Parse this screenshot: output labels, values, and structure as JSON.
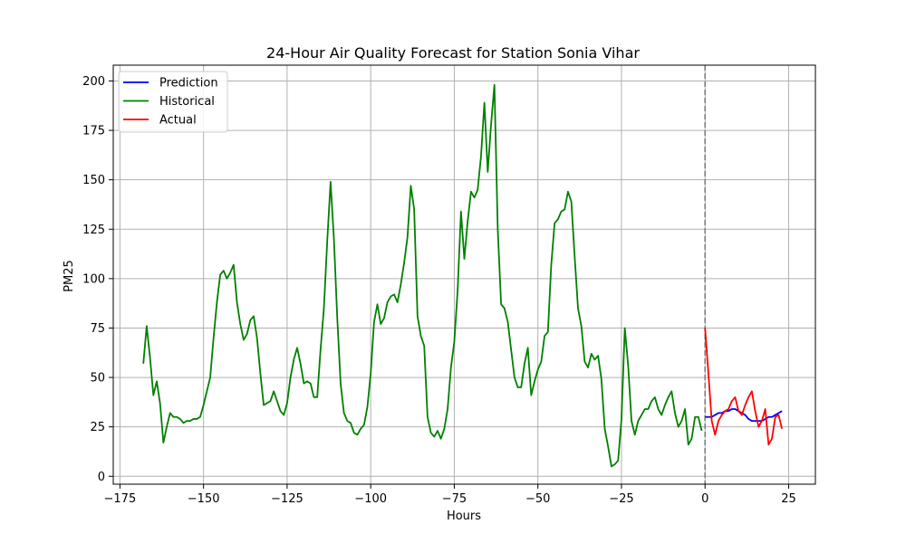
{
  "chart_data": {
    "type": "line",
    "title": "24-Hour Air Quality Forecast for Station Sonia Vihar",
    "xlabel": "Hours",
    "ylabel": "PM25",
    "xlim": [
      -177,
      33
    ],
    "ylim": [
      -4,
      208
    ],
    "xticks": [
      -175,
      -150,
      -125,
      -100,
      -75,
      -50,
      -25,
      0,
      25
    ],
    "yticks": [
      0,
      25,
      50,
      75,
      100,
      125,
      150,
      175,
      200
    ],
    "grid": true,
    "legend_position": "top-left",
    "vline": {
      "x": 0,
      "color": "#808080",
      "style": "dashed"
    },
    "series": [
      {
        "name": "Historical",
        "color": "#008000",
        "x": [
          -168,
          -167,
          -166,
          -165,
          -164,
          -163,
          -162,
          -161,
          -160,
          -159,
          -158,
          -157,
          -156,
          -155,
          -154,
          -153,
          -152,
          -151,
          -150,
          -149,
          -148,
          -147,
          -146,
          -145,
          -144,
          -143,
          -142,
          -141,
          -140,
          -139,
          -138,
          -137,
          -136,
          -135,
          -134,
          -133,
          -132,
          -131,
          -130,
          -129,
          -128,
          -127,
          -126,
          -125,
          -124,
          -123,
          -122,
          -121,
          -120,
          -119,
          -118,
          -117,
          -116,
          -115,
          -114,
          -113,
          -112,
          -111,
          -110,
          -109,
          -108,
          -107,
          -106,
          -105,
          -104,
          -103,
          -102,
          -101,
          -100,
          -99,
          -98,
          -97,
          -96,
          -95,
          -94,
          -93,
          -92,
          -91,
          -90,
          -89,
          -88,
          -87,
          -86,
          -85,
          -84,
          -83,
          -82,
          -81,
          -80,
          -79,
          -78,
          -77,
          -76,
          -75,
          -74,
          -73,
          -72,
          -71,
          -70,
          -69,
          -68,
          -67,
          -66,
          -65,
          -64,
          -63,
          -62,
          -61,
          -60,
          -59,
          -58,
          -57,
          -56,
          -55,
          -54,
          -53,
          -52,
          -51,
          -50,
          -49,
          -48,
          -47,
          -46,
          -45,
          -44,
          -43,
          -42,
          -41,
          -40,
          -39,
          -38,
          -37,
          -36,
          -35,
          -34,
          -33,
          -32,
          -31,
          -30,
          -29,
          -28,
          -27,
          -26,
          -25,
          -24,
          -23,
          -22,
          -21,
          -20,
          -19,
          -18,
          -17,
          -16,
          -15,
          -14,
          -13,
          -12,
          -11,
          -10,
          -9,
          -8,
          -7,
          -6,
          -5,
          -4,
          -3,
          -2,
          -1
        ],
        "values": [
          57,
          76,
          60,
          41,
          48,
          37,
          17,
          25,
          32,
          30,
          30,
          29,
          27,
          28,
          28,
          29,
          29,
          30,
          36,
          43,
          50,
          70,
          88,
          102,
          104,
          100,
          103,
          107,
          88,
          77,
          69,
          72,
          79,
          81,
          70,
          52,
          36,
          37,
          38,
          43,
          38,
          33,
          31,
          37,
          50,
          59,
          65,
          57,
          47,
          48,
          47,
          40,
          40,
          64,
          85,
          119,
          149,
          120,
          80,
          47,
          32,
          28,
          27,
          22,
          21,
          24,
          26,
          35,
          52,
          78,
          87,
          77,
          80,
          88,
          91,
          92,
          88,
          97,
          108,
          121,
          147,
          135,
          81,
          71,
          66,
          30,
          22,
          20,
          23,
          19,
          24,
          34,
          55,
          68,
          94,
          134,
          110,
          129,
          144,
          141,
          145,
          162,
          189,
          154,
          178,
          198,
          125,
          87,
          85,
          78,
          64,
          50,
          45,
          45,
          57,
          65,
          41,
          48,
          54,
          58,
          71,
          73,
          107,
          128,
          130,
          134,
          135,
          144,
          139,
          111,
          85,
          76,
          58,
          55,
          62,
          59,
          61,
          49,
          24,
          15,
          5,
          6,
          8,
          29,
          75,
          56,
          28,
          21,
          28,
          31,
          34,
          34,
          38,
          40,
          34,
          31,
          36,
          40,
          43,
          32,
          25,
          28,
          34,
          16,
          19,
          30,
          30,
          23
        ]
      },
      {
        "name": "Prediction",
        "color": "#0000ff",
        "x": [
          0,
          1,
          2,
          3,
          4,
          5,
          6,
          7,
          8,
          9,
          10,
          11,
          12,
          13,
          14,
          15,
          16,
          17,
          18,
          19,
          20,
          21,
          22,
          23
        ],
        "values": [
          30,
          30,
          30,
          31,
          32,
          32,
          33,
          33,
          34,
          34,
          33,
          32,
          31,
          29,
          28,
          28,
          28,
          28,
          29,
          30,
          30,
          31,
          32,
          33
        ]
      },
      {
        "name": "Actual",
        "color": "#ff0000",
        "x": [
          0,
          1,
          2,
          3,
          4,
          5,
          6,
          7,
          8,
          9,
          10,
          11,
          12,
          13,
          14,
          15,
          16,
          17,
          18,
          19,
          20,
          21,
          22,
          23
        ],
        "values": [
          75,
          52,
          28,
          21,
          28,
          31,
          33,
          34,
          38,
          40,
          33,
          31,
          36,
          40,
          43,
          33,
          25,
          28,
          34,
          16,
          19,
          30,
          31,
          24
        ]
      }
    ]
  }
}
